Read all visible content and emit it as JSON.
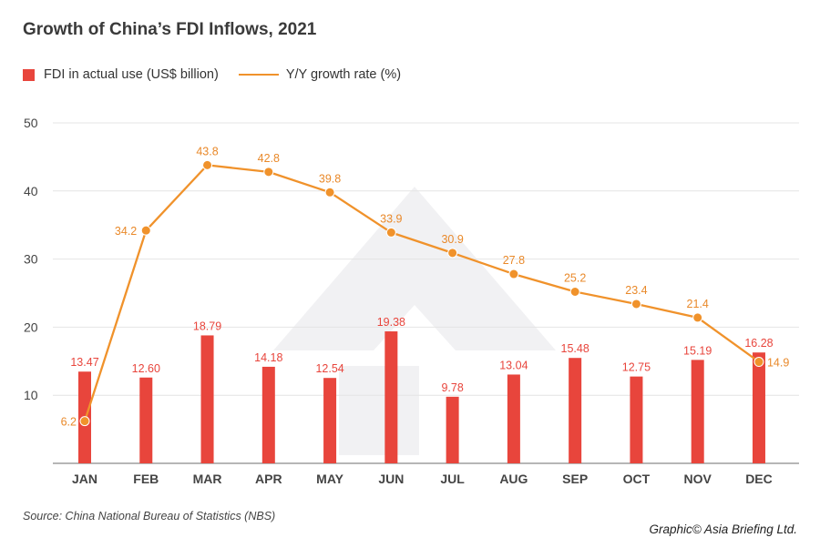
{
  "header": {
    "title": "Growth of China’s FDI Inflows, 2021"
  },
  "legend": {
    "bar_label": "FDI in actual use (US$ billion)",
    "line_label": "Y/Y growth rate (%)"
  },
  "footer": {
    "source": "Source: China National Bureau of Statistics (NBS)",
    "credit": "Graphic© Asia Briefing Ltd."
  },
  "colors": {
    "bar": "#e8453c",
    "line": "#f0922b",
    "bar_label": "#e8453c",
    "line_label": "#e9892a",
    "grid": "#e4e4e4",
    "watermark": "#f1f1f3"
  },
  "chart_data": {
    "type": "bar",
    "title": "Growth of China’s FDI Inflows, 2021",
    "xlabel": "",
    "ylabel": "",
    "categories": [
      "JAN",
      "FEB",
      "MAR",
      "APR",
      "MAY",
      "JUN",
      "JUL",
      "AUG",
      "SEP",
      "OCT",
      "NOV",
      "DEC"
    ],
    "ylim": [
      0,
      50
    ],
    "yticks": [
      10,
      20,
      30,
      40,
      50
    ],
    "grid": true,
    "legend_position": "top-left",
    "series": [
      {
        "name": "FDI in actual use (US$ billion)",
        "type": "bar",
        "values": [
          13.47,
          12.6,
          18.79,
          14.18,
          12.54,
          19.38,
          9.78,
          13.04,
          15.48,
          12.75,
          15.19,
          16.28
        ],
        "labels": [
          "13.47",
          "12.60",
          "18.79",
          "14.18",
          "12.54",
          "19.38",
          "9.78",
          "13.04",
          "15.48",
          "12.75",
          "15.19",
          "16.28"
        ]
      },
      {
        "name": "Y/Y growth rate (%)",
        "type": "line",
        "values": [
          6.2,
          34.2,
          43.8,
          42.8,
          39.8,
          33.9,
          30.9,
          27.8,
          25.2,
          23.4,
          21.4,
          14.9
        ],
        "labels": [
          "6.2",
          "34.2",
          "43.8",
          "42.8",
          "39.8",
          "33.9",
          "30.9",
          "27.8",
          "25.2",
          "23.4",
          "21.4",
          "14.9"
        ]
      }
    ]
  }
}
